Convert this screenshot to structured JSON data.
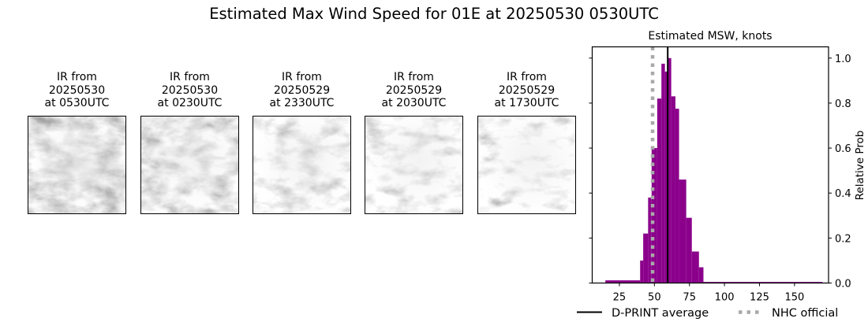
{
  "figure": {
    "suptitle": "Estimated Max Wind Speed for 01E at 20250530 0530UTC"
  },
  "ir_images": [
    {
      "line1": "IR from",
      "line2": "20250530",
      "line3": "at 0530UTC",
      "brightness": 0.55
    },
    {
      "line1": "IR from",
      "line2": "20250530",
      "line3": "at 0230UTC",
      "brightness": 0.62
    },
    {
      "line1": "IR from",
      "line2": "20250529",
      "line3": "at 2330UTC",
      "brightness": 0.72
    },
    {
      "line1": "IR from",
      "line2": "20250529",
      "line3": "at 2030UTC",
      "brightness": 0.75
    },
    {
      "line1": "IR from",
      "line2": "20250529",
      "line3": "at 1730UTC",
      "brightness": 0.8
    }
  ],
  "colors": {
    "bar": "#8b008b",
    "dprint_line": "#000000",
    "nhc_line": "#a9a9a9"
  },
  "chart_data": {
    "type": "bar",
    "title": "Estimated MSW, knots",
    "xlabel": "",
    "ylabel": "Relative Prob",
    "xlim": [
      5.6,
      174.3
    ],
    "ylim": [
      0,
      1.05
    ],
    "xticks": [
      25,
      50,
      75,
      100,
      125,
      150
    ],
    "yticks": [
      0.0,
      0.2,
      0.4,
      0.6,
      0.8,
      1.0
    ],
    "ytick_labels": [
      "0.0",
      "0.2",
      "0.4",
      "0.6",
      "0.8",
      "1.0"
    ],
    "yaxis_position": "right",
    "grid": false,
    "bins": [
      {
        "x0": 15.0,
        "x1": 39.8,
        "value": 0.012
      },
      {
        "x0": 39.8,
        "x1": 42.0,
        "value": 0.1
      },
      {
        "x0": 42.0,
        "x1": 45.5,
        "value": 0.22
      },
      {
        "x0": 45.5,
        "x1": 48.0,
        "value": 0.38
      },
      {
        "x0": 48.0,
        "x1": 52.0,
        "value": 0.6
      },
      {
        "x0": 52.0,
        "x1": 55.0,
        "value": 0.82
      },
      {
        "x0": 55.0,
        "x1": 57.5,
        "value": 0.975
      },
      {
        "x0": 57.5,
        "x1": 60.0,
        "value": 0.94
      },
      {
        "x0": 60.0,
        "x1": 62.0,
        "value": 1.0
      },
      {
        "x0": 62.0,
        "x1": 65.0,
        "value": 0.83
      },
      {
        "x0": 65.0,
        "x1": 67.6,
        "value": 0.775
      },
      {
        "x0": 67.6,
        "x1": 72.7,
        "value": 0.46
      },
      {
        "x0": 72.7,
        "x1": 76.7,
        "value": 0.29
      },
      {
        "x0": 76.7,
        "x1": 81.8,
        "value": 0.14
      },
      {
        "x0": 81.8,
        "x1": 85.0,
        "value": 0.07
      },
      {
        "x0": 85.0,
        "x1": 170.0,
        "value": 0.005
      }
    ],
    "vlines": [
      {
        "name": "D-PRINT average",
        "x": 59.5,
        "style": "solid",
        "color": "#000000"
      },
      {
        "name": "NHC official",
        "x": 48.7,
        "style": "dotted",
        "color": "#a9a9a9"
      }
    ],
    "legend": {
      "position": "bottom",
      "entries": [
        "D-PRINT average",
        "NHC official"
      ]
    }
  }
}
